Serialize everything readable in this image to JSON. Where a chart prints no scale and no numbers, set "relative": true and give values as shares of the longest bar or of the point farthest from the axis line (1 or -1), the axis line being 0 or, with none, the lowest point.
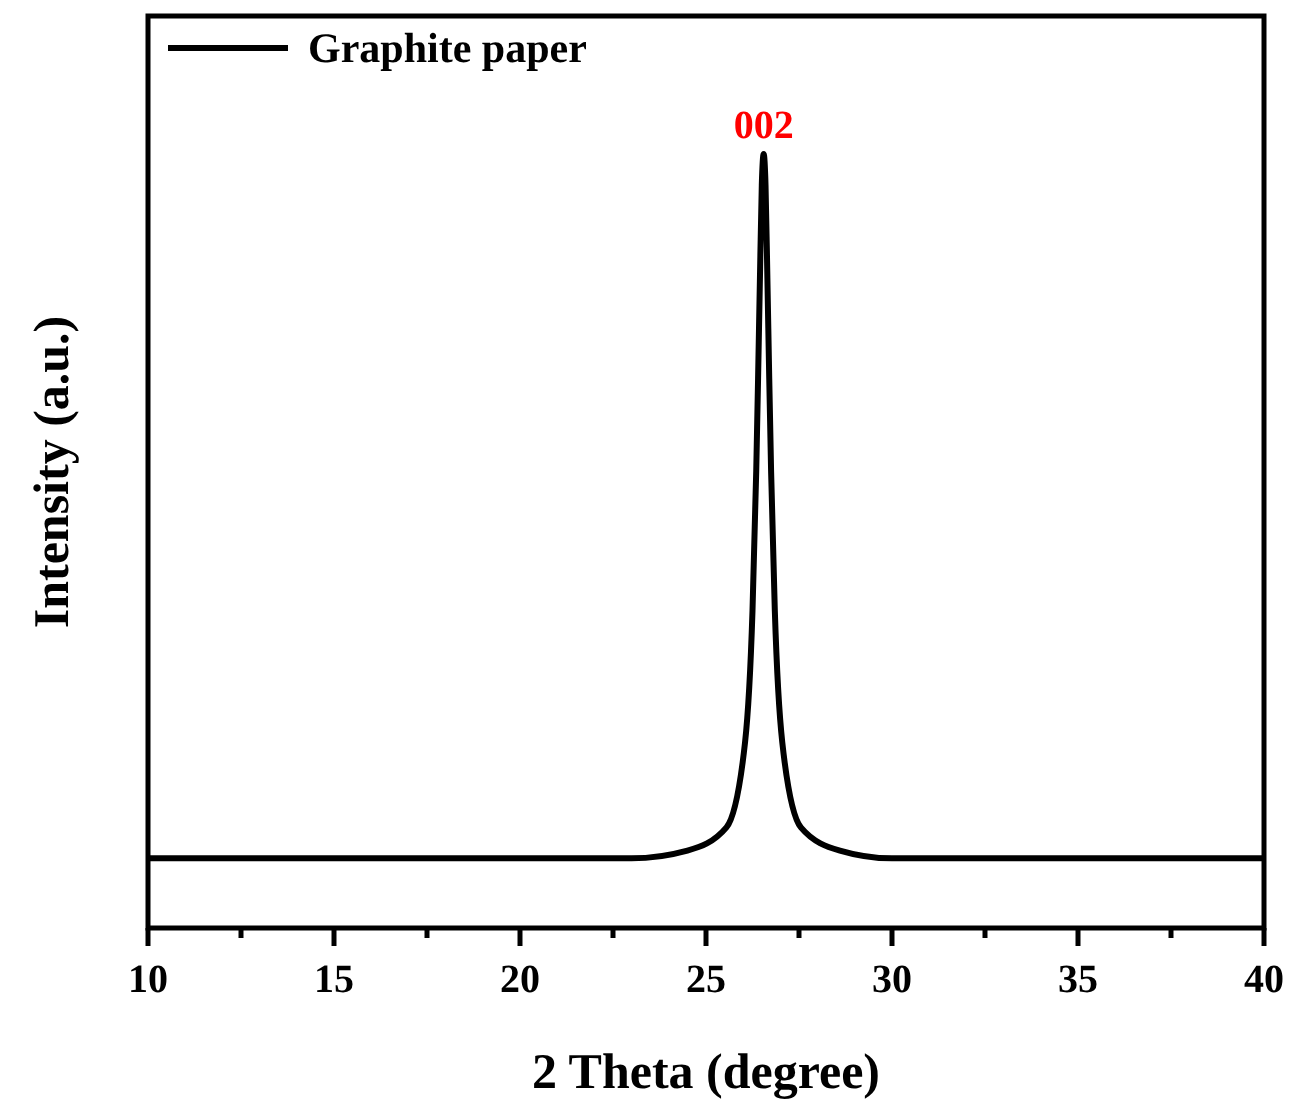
{
  "chart_data": {
    "type": "line",
    "relative": true,
    "xlabel": "2 Theta (degree)",
    "ylabel": "Intensity (a.u.)",
    "xlim": [
      10,
      40
    ],
    "xticks": [
      10,
      {
        "value": 12.5,
        "label": null
      },
      15,
      {
        "value": 17.5,
        "label": null
      },
      20,
      {
        "value": 22.5,
        "label": null
      },
      25,
      {
        "value": 27.5,
        "label": null
      },
      30,
      {
        "value": 32.5,
        "label": null
      },
      35,
      {
        "value": 37.5,
        "label": null
      },
      40
    ],
    "tick_labels": "x",
    "legend": "top left",
    "line_style": "solid",
    "annotations": [
      {
        "text": "002",
        "x": 26.55,
        "y": 1
      }
    ],
    "series": [
      {
        "name": "Graphite paper",
        "color": "#000000",
        "x": [
          10,
          15,
          20,
          23,
          24.5,
          25.55,
          26.05,
          26.25,
          26.35,
          26.4,
          26.45,
          26.5,
          26.55,
          26.6,
          26.65,
          26.7,
          26.75,
          26.85,
          27.05,
          27.55,
          28.6,
          30,
          35,
          40
        ],
        "values": [
          0.09,
          0.09,
          0.09,
          0.09,
          0.1,
          0.13,
          0.24,
          0.41,
          0.59,
          0.71,
          0.84,
          0.96,
          1,
          0.96,
          0.84,
          0.71,
          0.59,
          0.41,
          0.24,
          0.13,
          0.1,
          0.09,
          0.09,
          0.09
        ]
      }
    ]
  }
}
